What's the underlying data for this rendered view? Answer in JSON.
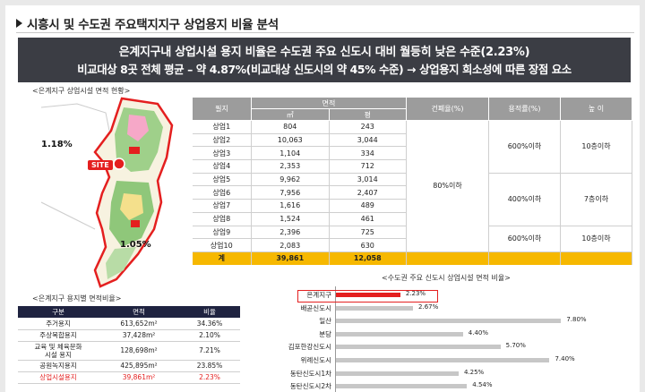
{
  "title": "시흥시 및 수도권 주요택지지구 상업용지 비율 분석",
  "banner": {
    "line1": "은계지구내 상업시설 용지 비율은 수도권 주요 신도시 대비 월등히 낮은 수준(2.23%)",
    "line2": "비교대상 8곳 전체 평균 – 약 4.87%(비교대상 신도시의 약 45% 수준) → 상업용지 희소성에 따른 장점 요소"
  },
  "map": {
    "title": "<은계지구 상업시설 면적 현황>",
    "pct_top": "1.18%",
    "pct_bottom": "1.05%",
    "site_label": "SITE"
  },
  "lot_table": {
    "headers": {
      "lot": "필지",
      "area": "면적",
      "sqm": "㎡",
      "pyeong": "평",
      "coverage": "건폐율(%)",
      "far": "용적률(%)",
      "height": "높  이"
    },
    "rows": [
      {
        "lot": "상업1",
        "sqm": "804",
        "pyeong": "243"
      },
      {
        "lot": "상업2",
        "sqm": "10,063",
        "pyeong": "3,044"
      },
      {
        "lot": "상업3",
        "sqm": "1,104",
        "pyeong": "334"
      },
      {
        "lot": "상업4",
        "sqm": "2,353",
        "pyeong": "712"
      },
      {
        "lot": "상업5",
        "sqm": "9,962",
        "pyeong": "3,014"
      },
      {
        "lot": "상업6",
        "sqm": "7,956",
        "pyeong": "2,407"
      },
      {
        "lot": "상업7",
        "sqm": "1,616",
        "pyeong": "489"
      },
      {
        "lot": "상업8",
        "sqm": "1,524",
        "pyeong": "461"
      },
      {
        "lot": "상업9",
        "sqm": "2,396",
        "pyeong": "725"
      },
      {
        "lot": "상업10",
        "sqm": "2,083",
        "pyeong": "630"
      }
    ],
    "coverage": "80%이하",
    "far_groups": [
      "600%이하",
      "400%이하",
      "600%이하"
    ],
    "height_groups": [
      "10층이하",
      "7층이하",
      "10층이하"
    ],
    "total": {
      "lot": "계",
      "sqm": "39,861",
      "pyeong": "12,058"
    }
  },
  "zoning_table": {
    "title": "<은계지구 용지별 면적비율>",
    "headers": {
      "type": "구분",
      "area": "면적",
      "ratio": "비율"
    },
    "rows": [
      {
        "type": "주거용지",
        "area": "613,652m²",
        "ratio": "34.36%"
      },
      {
        "type": "주상복합용지",
        "area": "37,428m²",
        "ratio": "2.10%"
      },
      {
        "type": "교육 및 체육문화\n시설 용지",
        "area": "128,698m²",
        "ratio": "7.21%"
      },
      {
        "type": "공원녹지용지",
        "area": "425,895m²",
        "ratio": "23.85%"
      },
      {
        "type": "상업시설용지",
        "area": "39,861m²",
        "ratio": "2.23%"
      }
    ]
  },
  "chart_title": "<수도권 주요 신도시 상업시설 면적 비율>",
  "chart_data": {
    "type": "bar",
    "orientation": "horizontal",
    "categories": [
      "은계지구",
      "배곧신도시",
      "일산",
      "분당",
      "김포한강신도시",
      "위례신도시",
      "동탄신도시1차",
      "동탄신도시2차"
    ],
    "values": [
      2.23,
      2.67,
      7.8,
      4.4,
      5.7,
      7.4,
      4.25,
      4.54
    ],
    "value_labels": [
      "2.23%",
      "2.67%",
      "7.80%",
      "4.40%",
      "5.70%",
      "7.40%",
      "4.25%",
      "4.54%"
    ],
    "highlight": "은계지구",
    "colors": {
      "highlight": "#e41f1f",
      "default": "#c7c7c7"
    },
    "xlim": [
      0,
      9
    ]
  },
  "colors": {
    "banner": "#3b3d44",
    "total_row": "#f6b800",
    "zoning_header": "#1f2340",
    "accent": "#e41f1f"
  }
}
